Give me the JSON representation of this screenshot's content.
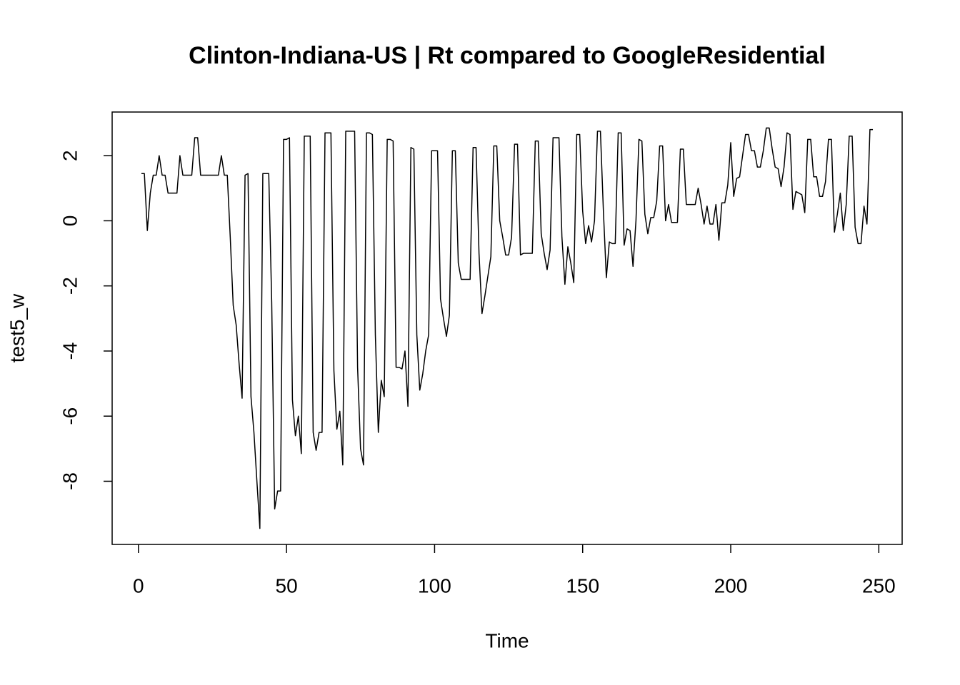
{
  "chart_data": {
    "type": "line",
    "title": "Clinton-Indiana-US | Rt compared to GoogleResidential",
    "xlabel": "Time",
    "ylabel": "test5_w",
    "color": "#000000",
    "x": [
      1,
      2,
      3,
      4,
      5,
      6,
      7,
      8,
      9,
      10,
      11,
      12,
      13,
      14,
      15,
      16,
      17,
      18,
      19,
      20,
      21,
      22,
      23,
      24,
      25,
      26,
      27,
      28,
      29,
      30,
      31,
      32,
      33,
      34,
      35,
      36,
      37,
      38,
      39,
      40,
      41,
      42,
      43,
      44,
      45,
      46,
      47,
      48,
      49,
      50,
      51,
      52,
      53,
      54,
      55,
      56,
      57,
      58,
      59,
      60,
      61,
      62,
      63,
      64,
      65,
      66,
      67,
      68,
      69,
      70,
      71,
      72,
      73,
      74,
      75,
      76,
      77,
      78,
      79,
      80,
      81,
      82,
      83,
      84,
      85,
      86,
      87,
      88,
      89,
      90,
      91,
      92,
      93,
      94,
      95,
      96,
      97,
      98,
      99,
      100,
      101,
      102,
      103,
      104,
      105,
      106,
      107,
      108,
      109,
      110,
      111,
      112,
      113,
      114,
      115,
      116,
      117,
      118,
      119,
      120,
      121,
      122,
      123,
      124,
      125,
      126,
      127,
      128,
      129,
      130,
      131,
      132,
      133,
      134,
      135,
      136,
      137,
      138,
      139,
      140,
      141,
      142,
      143,
      144,
      145,
      146,
      147,
      148,
      149,
      150,
      151,
      152,
      153,
      154,
      155,
      156,
      157,
      158,
      159,
      160,
      161,
      162,
      163,
      164,
      165,
      166,
      167,
      168,
      169,
      170,
      171,
      172,
      173,
      174,
      175,
      176,
      177,
      178,
      179,
      180,
      181,
      182,
      183,
      184,
      185,
      186,
      187,
      188,
      189,
      190,
      191,
      192,
      193,
      194,
      195,
      196,
      197,
      198,
      199,
      200,
      201,
      202,
      203,
      204,
      205,
      206,
      207,
      208,
      209,
      210,
      211,
      212,
      213,
      214,
      215,
      216,
      217,
      218,
      219,
      220,
      221,
      222,
      223,
      224,
      225,
      226,
      227,
      228,
      229,
      230,
      231,
      232,
      233,
      234,
      235,
      236,
      237,
      238,
      239,
      240,
      241,
      242,
      243,
      244,
      245,
      246,
      247,
      248
    ],
    "values": [
      1.45,
      1.45,
      -0.3,
      0.85,
      1.4,
      1.4,
      2.0,
      1.4,
      1.4,
      0.85,
      0.85,
      0.85,
      0.85,
      2.0,
      1.4,
      1.4,
      1.4,
      1.4,
      2.55,
      2.55,
      1.4,
      1.4,
      1.4,
      1.4,
      1.4,
      1.4,
      1.4,
      2.0,
      1.4,
      1.4,
      -0.5,
      -2.6,
      -3.2,
      -4.4,
      -5.45,
      1.4,
      1.45,
      -5.4,
      -6.5,
      -8.0,
      -9.45,
      1.45,
      1.45,
      1.45,
      -2.5,
      -8.85,
      -8.3,
      -8.3,
      2.5,
      2.5,
      2.55,
      -5.5,
      -6.6,
      -6.0,
      -7.15,
      2.6,
      2.6,
      2.6,
      -6.5,
      -7.05,
      -6.5,
      -6.5,
      2.7,
      2.7,
      2.7,
      -4.6,
      -6.4,
      -5.85,
      -7.5,
      2.75,
      2.75,
      2.75,
      2.75,
      -4.5,
      -7.0,
      -7.5,
      2.7,
      2.7,
      2.65,
      -3.5,
      -6.5,
      -4.9,
      -5.4,
      2.5,
      2.5,
      2.45,
      -4.5,
      -4.5,
      -4.55,
      -4.0,
      -5.7,
      2.25,
      2.2,
      -3.5,
      -5.2,
      -4.7,
      -4.0,
      -3.5,
      2.15,
      2.15,
      2.15,
      -2.4,
      -3.0,
      -3.55,
      -2.9,
      2.15,
      2.15,
      -1.3,
      -1.8,
      -1.8,
      -1.8,
      -1.8,
      2.25,
      2.25,
      -1.0,
      -2.85,
      -2.3,
      -1.7,
      -1.1,
      2.3,
      2.3,
      0.0,
      -0.5,
      -1.05,
      -1.05,
      -0.5,
      2.35,
      2.35,
      -1.05,
      -1.0,
      -1.0,
      -1.0,
      -1.0,
      2.45,
      2.45,
      -0.4,
      -1.0,
      -1.5,
      -0.9,
      2.55,
      2.55,
      2.55,
      -0.5,
      -1.95,
      -0.8,
      -1.3,
      -1.9,
      2.65,
      2.65,
      0.3,
      -0.7,
      -0.15,
      -0.65,
      0.0,
      2.75,
      2.75,
      0.3,
      -1.75,
      -0.65,
      -0.7,
      -0.7,
      2.7,
      2.7,
      -0.75,
      -0.25,
      -0.3,
      -1.4,
      0.0,
      2.5,
      2.45,
      0.2,
      -0.4,
      0.1,
      0.1,
      0.6,
      2.3,
      2.3,
      0.0,
      0.5,
      -0.05,
      -0.05,
      -0.05,
      2.2,
      2.2,
      0.5,
      0.5,
      0.5,
      0.5,
      1.0,
      0.5,
      -0.1,
      0.45,
      -0.1,
      -0.1,
      0.5,
      -0.6,
      0.55,
      0.55,
      1.1,
      2.4,
      0.75,
      1.3,
      1.35,
      2.0,
      2.65,
      2.65,
      2.15,
      2.15,
      1.65,
      1.65,
      2.15,
      2.85,
      2.85,
      2.2,
      1.65,
      1.6,
      1.05,
      1.65,
      2.7,
      2.65,
      0.35,
      0.9,
      0.85,
      0.8,
      0.25,
      2.5,
      2.5,
      1.35,
      1.35,
      0.75,
      0.75,
      1.2,
      2.5,
      2.5,
      -0.35,
      0.2,
      0.85,
      -0.3,
      0.5,
      2.6,
      2.6,
      -0.2,
      -0.7,
      -0.7,
      0.45,
      -0.1,
      2.8,
      2.8
    ],
    "xlim": [
      -8.88,
      257.88
    ],
    "xticks": [
      0,
      50,
      100,
      150,
      200,
      250
    ],
    "ylim": [
      -9.94,
      3.34
    ],
    "yticks": [
      -8,
      -6,
      -4,
      -2,
      0,
      2
    ]
  }
}
